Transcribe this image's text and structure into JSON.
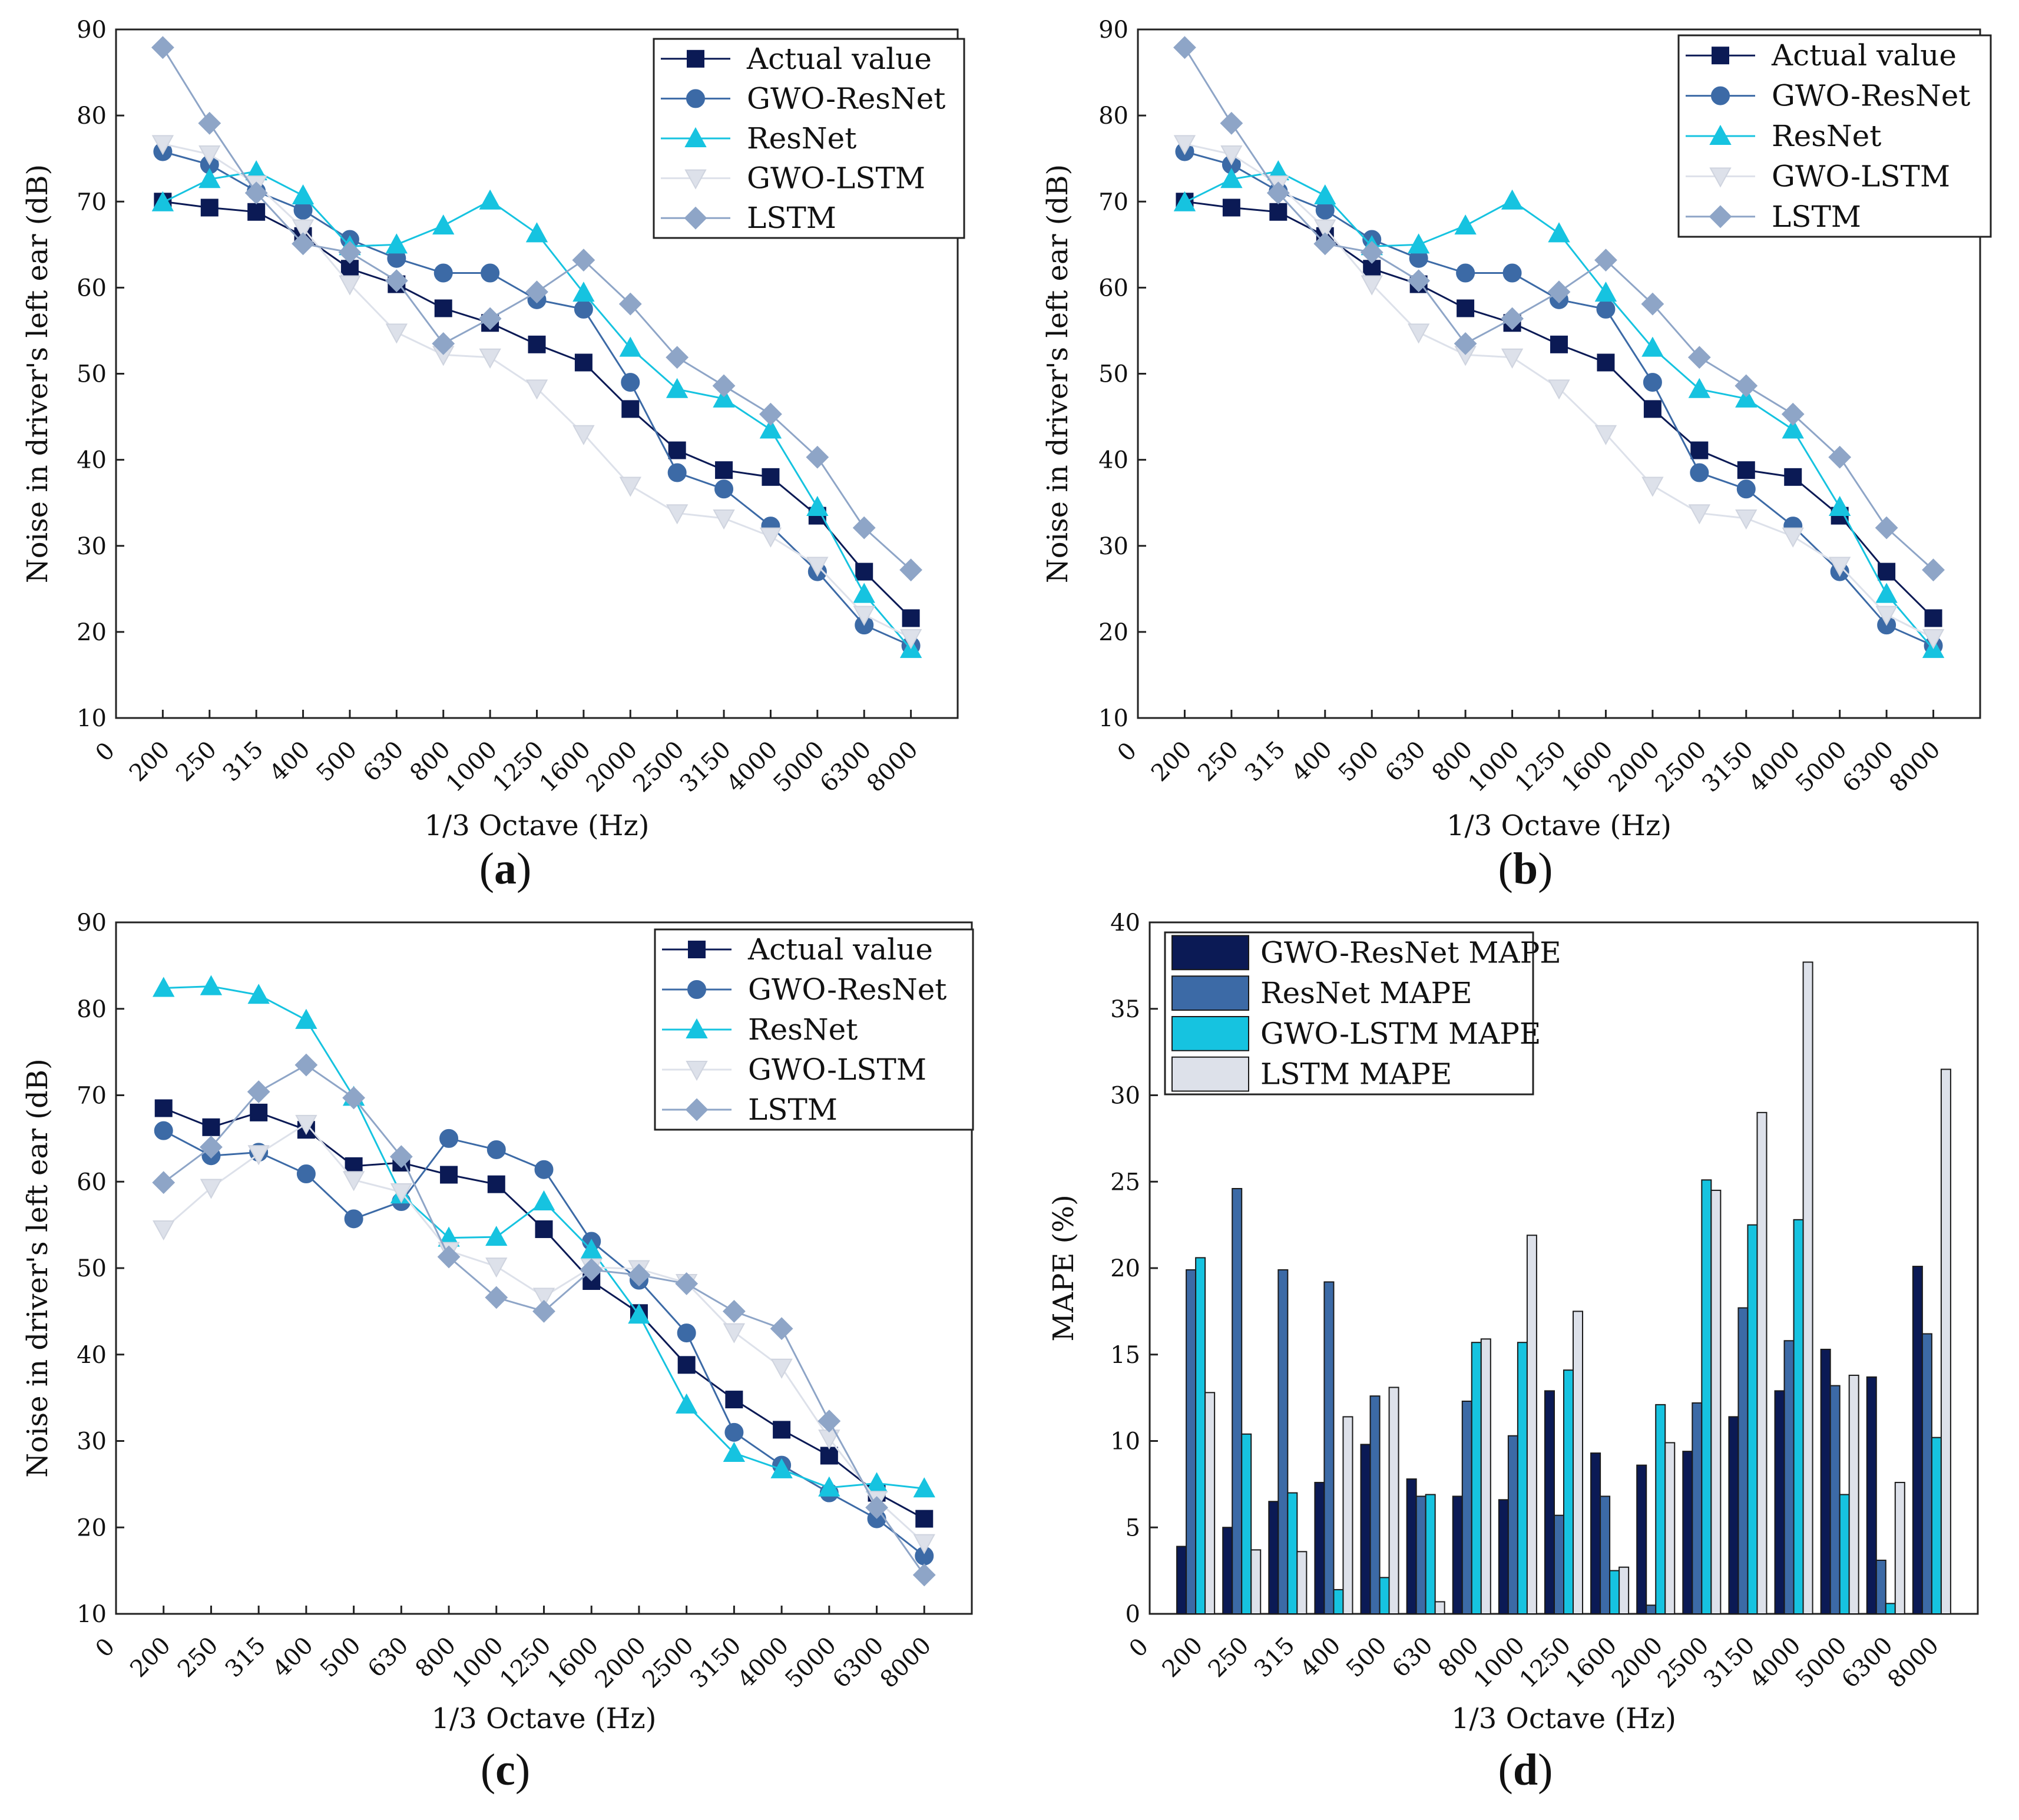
{
  "figure": {
    "panel_labels": [
      "a",
      "b",
      "c",
      "d"
    ]
  },
  "chart_data": [
    {
      "type": "line",
      "panel": "a",
      "title": "",
      "xlabel": "1/3 Octave (Hz)",
      "ylabel": "Noise in driver's left ear (dB)",
      "categories": [
        "200",
        "250",
        "315",
        "400",
        "500",
        "630",
        "800",
        "1000",
        "1250",
        "1600",
        "2000",
        "2500",
        "3150",
        "4000",
        "5000",
        "6300",
        "8000"
      ],
      "x_zero_label": "0",
      "ylim": [
        10,
        90
      ],
      "yticks": [
        "10",
        "20",
        "30",
        "40",
        "50",
        "60",
        "70",
        "80",
        "90"
      ],
      "legend_position": "top-right",
      "series": [
        {
          "name": "Actual value",
          "color": "#0b1a55",
          "marker": "square",
          "values": [
            70,
            69.3,
            68.8,
            66,
            62.2,
            60.4,
            57.6,
            55.9,
            53.4,
            51.3,
            45.9,
            41.1,
            38.8,
            38,
            33.5,
            27,
            21.6
          ]
        },
        {
          "name": "GWO-ResNet",
          "color": "#3c6aa6",
          "marker": "circle",
          "values": [
            75.8,
            74.3,
            71.2,
            69,
            65.6,
            63.4,
            61.7,
            61.7,
            58.6,
            57.5,
            49,
            38.5,
            36.6,
            32.3,
            27,
            20.8,
            18.4
          ]
        },
        {
          "name": "ResNet",
          "color": "#16c3e0",
          "marker": "triangle",
          "values": [
            69.9,
            72.6,
            73.5,
            70.7,
            64.8,
            65,
            67.2,
            70.1,
            66.3,
            59.4,
            53,
            48.2,
            47.1,
            43.5,
            34.5,
            24.4,
            18
          ]
        },
        {
          "name": "GWO-LSTM",
          "color": "#dde1ea",
          "marker": "triangle-down",
          "values": [
            76.7,
            75.5,
            72,
            66.9,
            60.4,
            54.8,
            52.2,
            51.9,
            48.3,
            43,
            37,
            33.8,
            33.2,
            31.1,
            27.7,
            22,
            19.3
          ]
        },
        {
          "name": "LSTM",
          "color": "#8ea5c7",
          "marker": "diamond",
          "values": [
            87.9,
            79.1,
            71,
            65.1,
            64.1,
            60.8,
            53.5,
            56.4,
            59.5,
            63.2,
            58.1,
            51.9,
            48.6,
            45.3,
            40.3,
            32.1,
            27.2
          ]
        }
      ]
    },
    {
      "type": "line",
      "panel": "b",
      "title": "",
      "xlabel": "1/3 Octave (Hz)",
      "ylabel": "Noise in driver's left ear (dB)",
      "categories": [
        "200",
        "250",
        "315",
        "400",
        "500",
        "630",
        "800",
        "1000",
        "1250",
        "1600",
        "2000",
        "2500",
        "3150",
        "4000",
        "5000",
        "6300",
        "8000"
      ],
      "x_zero_label": "0",
      "ylim": [
        10,
        90
      ],
      "yticks": [
        "10",
        "20",
        "30",
        "40",
        "50",
        "60",
        "70",
        "80",
        "90"
      ],
      "legend_position": "top-right",
      "series": [
        {
          "name": "Actual value",
          "color": "#0b1a55",
          "marker": "square",
          "values": [
            70,
            69.3,
            68.8,
            66,
            62.2,
            60.4,
            57.6,
            55.9,
            53.4,
            51.3,
            45.9,
            41.1,
            38.8,
            38,
            33.5,
            27,
            21.6
          ]
        },
        {
          "name": "GWO-ResNet",
          "color": "#3c6aa6",
          "marker": "circle",
          "values": [
            75.8,
            74.3,
            71.2,
            69,
            65.6,
            63.4,
            61.7,
            61.7,
            58.6,
            57.5,
            49,
            38.5,
            36.6,
            32.3,
            27,
            20.8,
            18.4
          ]
        },
        {
          "name": "ResNet",
          "color": "#16c3e0",
          "marker": "triangle",
          "values": [
            69.9,
            72.6,
            73.5,
            70.7,
            64.8,
            65,
            67.2,
            70.1,
            66.3,
            59.4,
            53,
            48.2,
            47.1,
            43.5,
            34.5,
            24.4,
            18
          ]
        },
        {
          "name": "GWO-LSTM",
          "color": "#dde1ea",
          "marker": "triangle-down",
          "values": [
            76.7,
            75.5,
            72,
            66.9,
            60.4,
            54.8,
            52.2,
            51.9,
            48.3,
            43,
            37,
            33.8,
            33.2,
            31.1,
            27.7,
            22,
            19.3
          ]
        },
        {
          "name": "LSTM",
          "color": "#8ea5c7",
          "marker": "diamond",
          "values": [
            87.9,
            79.1,
            71,
            65.1,
            64.1,
            60.8,
            53.5,
            56.4,
            59.5,
            63.2,
            58.1,
            51.9,
            48.6,
            45.3,
            40.3,
            32.1,
            27.2
          ]
        }
      ]
    },
    {
      "type": "line",
      "panel": "c",
      "title": "",
      "xlabel": "1/3 Octave (Hz)",
      "ylabel": "Noise in driver's left ear (dB)",
      "categories": [
        "200",
        "250",
        "315",
        "400",
        "500",
        "630",
        "800",
        "1000",
        "1250",
        "1600",
        "2000",
        "2500",
        "3150",
        "4000",
        "5000",
        "6300",
        "8000"
      ],
      "x_zero_label": "0",
      "ylim": [
        10,
        90
      ],
      "yticks": [
        "10",
        "20",
        "30",
        "40",
        "50",
        "60",
        "70",
        "80",
        "90"
      ],
      "legend_position": "top-right",
      "series": [
        {
          "name": "Actual value",
          "color": "#0b1a55",
          "marker": "square",
          "values": [
            68.5,
            66.3,
            68,
            66,
            61.8,
            62.2,
            60.8,
            59.7,
            54.5,
            48.5,
            44.8,
            38.8,
            34.8,
            31.3,
            28.3,
            24,
            21
          ]
        },
        {
          "name": "GWO-ResNet",
          "color": "#3c6aa6",
          "marker": "circle",
          "values": [
            65.9,
            63,
            63.4,
            60.9,
            55.7,
            57.7,
            65,
            63.7,
            61.4,
            53.1,
            48.6,
            42.5,
            31,
            27.2,
            24,
            21,
            16.7
          ]
        },
        {
          "name": "ResNet",
          "color": "#16c3e0",
          "marker": "triangle",
          "values": [
            82.4,
            82.6,
            81.6,
            78.7,
            69.8,
            58.5,
            53.5,
            53.6,
            57.7,
            52.1,
            44.6,
            34.2,
            28.6,
            26.7,
            24.6,
            25.1,
            24.5
          ]
        },
        {
          "name": "GWO-LSTM",
          "color": "#dde1ea",
          "marker": "triangle-down",
          "values": [
            54.5,
            59.3,
            63.2,
            66.7,
            60.2,
            58.8,
            52,
            50.2,
            46.7,
            50.1,
            49.9,
            48.3,
            42.6,
            38.5,
            30.3,
            23.2,
            18.2
          ]
        },
        {
          "name": "LSTM",
          "color": "#8ea5c7",
          "marker": "diamond",
          "values": [
            59.9,
            64,
            70.4,
            73.5,
            69.7,
            62.9,
            51.3,
            46.6,
            45,
            49.8,
            49.2,
            48.2,
            45,
            43,
            32.3,
            22.3,
            14.5
          ]
        }
      ]
    },
    {
      "type": "bar",
      "panel": "d",
      "title": "",
      "xlabel": "1/3 Octave (Hz)",
      "ylabel": "MAPE (%)",
      "categories": [
        "200",
        "250",
        "315",
        "400",
        "500",
        "630",
        "800",
        "1000",
        "1250",
        "1600",
        "2000",
        "2500",
        "3150",
        "4000",
        "5000",
        "6300",
        "8000"
      ],
      "x_zero_label": "0",
      "ylim": [
        0,
        40
      ],
      "yticks": [
        "0",
        "5",
        "10",
        "15",
        "20",
        "25",
        "30",
        "35",
        "40"
      ],
      "legend_position": "top-left",
      "series": [
        {
          "name": "GWO-ResNet MAPE",
          "color": "#0b1a55",
          "values": [
            3.9,
            5,
            6.5,
            7.6,
            9.8,
            7.8,
            6.8,
            6.6,
            12.9,
            9.3,
            8.6,
            9.4,
            11.4,
            12.9,
            15.3,
            13.7,
            20.1
          ]
        },
        {
          "name": "ResNet MAPE",
          "color": "#3c6aa6",
          "values": [
            19.9,
            24.6,
            19.9,
            19.2,
            12.6,
            6.8,
            12.3,
            10.3,
            5.7,
            6.8,
            0.5,
            12.2,
            17.7,
            15.8,
            13.2,
            3.1,
            16.2
          ]
        },
        {
          "name": "GWO-LSTM MAPE",
          "color": "#16c3e0",
          "values": [
            20.6,
            10.4,
            7,
            1.4,
            2.1,
            6.9,
            15.7,
            15.7,
            14.1,
            2.5,
            12.1,
            25.1,
            22.5,
            22.8,
            6.9,
            0.6,
            10.2
          ]
        },
        {
          "name": "LSTM MAPE",
          "color": "#dde1ea",
          "values": [
            12.8,
            3.7,
            3.6,
            11.4,
            13.1,
            0.7,
            15.9,
            21.9,
            17.5,
            2.7,
            9.9,
            24.5,
            29,
            37.7,
            13.8,
            7.6,
            31.5
          ]
        }
      ]
    }
  ]
}
